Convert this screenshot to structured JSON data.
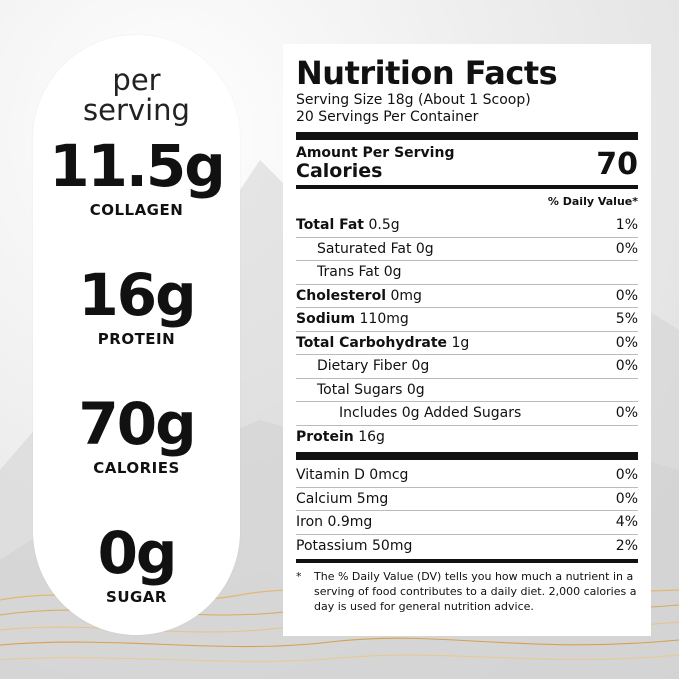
{
  "left_panel": {
    "per_serving": "per serving",
    "stats": [
      {
        "value": "11.5g",
        "label": "COLLAGEN"
      },
      {
        "value": "16g",
        "label": "PROTEIN"
      },
      {
        "value": "70g",
        "label": "CALORIES"
      },
      {
        "value": "0g",
        "label": "SUGAR"
      }
    ]
  },
  "nutrition": {
    "title": "Nutrition Facts",
    "serving_size": "Serving Size 18g (About 1 Scoop)",
    "servings_per_container": "20 Servings Per Container",
    "amount_per_serving": "Amount Per Serving",
    "calories_label": "Calories",
    "calories_value": "70",
    "dv_header": "% Daily Value*",
    "rows": [
      {
        "bold": "Total Fat",
        "rest": " 0.5g",
        "dv": "1%"
      },
      {
        "bold": "",
        "rest": "Saturated Fat 0g",
        "dv": "0%"
      },
      {
        "bold": "",
        "rest": "Trans Fat 0g",
        "dv": ""
      },
      {
        "bold": "Cholesterol",
        "rest": " 0mg",
        "dv": "0%"
      },
      {
        "bold": "Sodium",
        "rest": " 110mg",
        "dv": "5%"
      },
      {
        "bold": "Total Carbohydrate",
        "rest": " 1g",
        "dv": "0%"
      },
      {
        "bold": "",
        "rest": "Dietary Fiber 0g",
        "dv": "0%"
      },
      {
        "bold": "",
        "rest": "Total Sugars 0g",
        "dv": ""
      },
      {
        "bold": "",
        "rest": "Includes 0g Added Sugars",
        "dv": "0%"
      },
      {
        "bold": "Protein",
        "rest": " 16g",
        "dv": ""
      }
    ],
    "vitamins": [
      {
        "name": "Vitamin D 0mcg",
        "dv": "0%"
      },
      {
        "name": "Calcium 5mg",
        "dv": "0%"
      },
      {
        "name": "Iron 0.9mg",
        "dv": "4%"
      },
      {
        "name": "Potassium 50mg",
        "dv": "2%"
      }
    ],
    "footnote_star": "*",
    "footnote": "The % Daily Value (DV) tells you how much a nutrient in a serving of food contributes to a daily diet. 2,000 calories a day is used for general nutrition advice."
  }
}
